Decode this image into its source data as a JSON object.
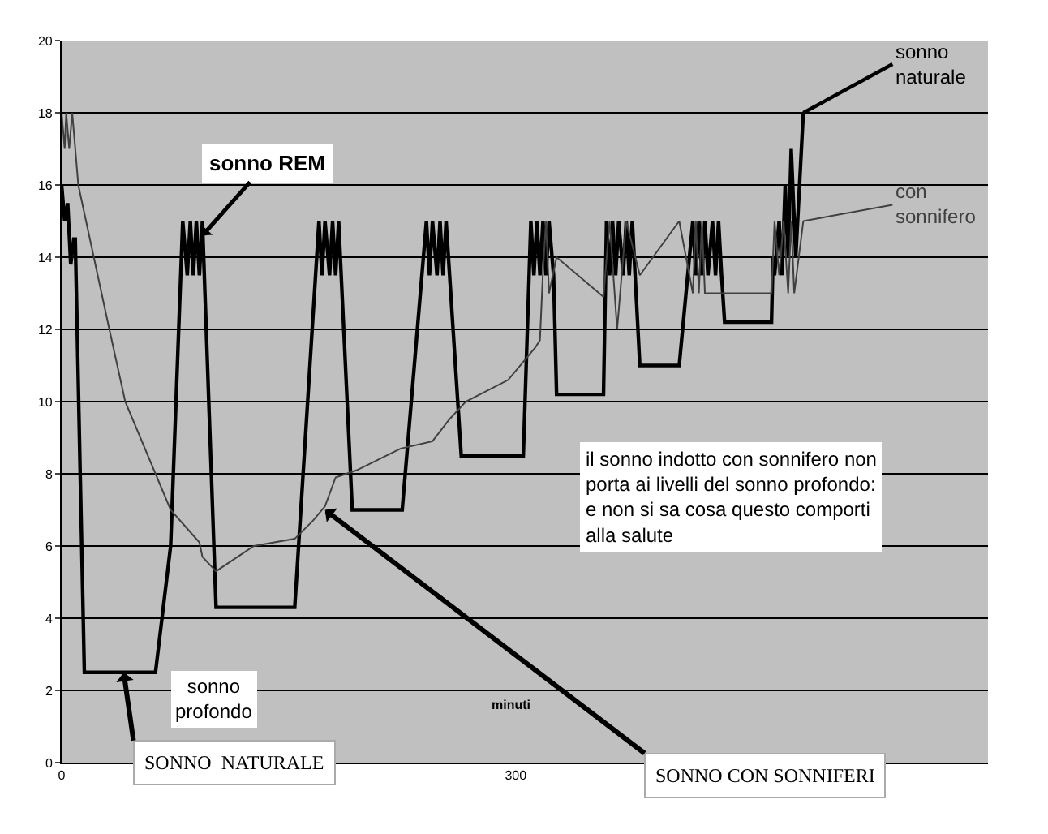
{
  "chart_data": {
    "type": "line",
    "xlabel": "minuti",
    "xlim": [
      0,
      612
    ],
    "xticks": [
      0,
      300
    ],
    "ylim": [
      0,
      20
    ],
    "yticks": [
      0,
      2,
      4,
      6,
      8,
      10,
      12,
      14,
      16,
      18,
      20
    ],
    "grid": "y",
    "marker": "none",
    "line_style": "solid",
    "series": [
      {
        "name": "sonno naturale",
        "color": "#000000",
        "x": [
          0,
          2,
          4,
          6,
          8,
          9,
          15,
          62,
          72,
          80,
          83,
          85,
          87,
          89,
          91,
          93,
          102,
          154,
          170,
          172,
          174,
          177,
          179,
          181,
          183,
          192,
          225,
          241,
          243,
          245,
          248,
          250,
          252,
          254,
          264,
          305,
          310,
          312,
          314,
          316,
          318,
          320,
          322,
          325,
          327,
          358,
          360,
          362,
          364,
          366,
          368,
          371,
          373,
          375,
          377,
          382,
          408,
          417,
          419,
          421,
          423,
          425,
          427,
          430,
          432,
          434,
          436,
          438,
          469,
          470,
          471,
          474,
          476,
          478,
          480,
          482,
          485,
          490
        ],
        "values": [
          16,
          15,
          15.5,
          13.8,
          14.5,
          14.5,
          2.5,
          2.5,
          6,
          15,
          13.5,
          15,
          13.5,
          15,
          13.5,
          15,
          4.3,
          4.3,
          15,
          13.5,
          15,
          13.5,
          15,
          13.5,
          15,
          7,
          7,
          15,
          13.5,
          15,
          13.5,
          15,
          13.5,
          15,
          8.5,
          8.5,
          15,
          13.5,
          15,
          13.5,
          15,
          13.5,
          15,
          13.5,
          10.2,
          10.2,
          15,
          13.5,
          15,
          13.5,
          15,
          13.5,
          15,
          13.5,
          15,
          11,
          11,
          15,
          13.5,
          15,
          13.5,
          15,
          13.5,
          15,
          13.5,
          15,
          13.5,
          12.2,
          12.2,
          14,
          13.5,
          15,
          13.5,
          16,
          14,
          17,
          14,
          18
        ]
      },
      {
        "name": "con sonnifero",
        "color": "#404040",
        "x": [
          0,
          2,
          3,
          5,
          7,
          11,
          31,
          42,
          72,
          91,
          93,
          102,
          127,
          154,
          166,
          174,
          181,
          195,
          224,
          245,
          256,
          267,
          295,
          313,
          316,
          318,
          320,
          322,
          327,
          358,
          362,
          367,
          373,
          382,
          408,
          417,
          419,
          421,
          423,
          425,
          431,
          469,
          471,
          474,
          477,
          480,
          482,
          484,
          490
        ],
        "values": [
          18,
          17,
          18,
          17,
          18,
          16,
          12.1,
          10,
          7,
          6.1,
          5.7,
          5.3,
          6,
          6.2,
          6.7,
          7.1,
          7.9,
          8.1,
          8.7,
          8.9,
          9.5,
          10,
          10.6,
          11.5,
          11.7,
          13.6,
          15,
          13,
          14,
          12.9,
          15,
          12,
          15,
          13.5,
          15,
          13,
          15,
          13,
          15,
          13,
          13,
          13,
          15,
          13.5,
          15,
          13,
          15,
          13,
          15
        ]
      }
    ],
    "annotations": [
      {
        "text": "sonno REM",
        "x": 93,
        "y": 14.6
      },
      "sonno profondo",
      {
        "text": "SONNO  NATURALE",
        "x": 41,
        "y": 2.5
      },
      {
        "text": "SONNO CON SONNIFERI",
        "x": 174,
        "y": 7
      },
      "il sonno indotto con sonnifero non porta ai livelli del sonno profondo: e non si sa cosa questo comporti alla salute"
    ]
  }
}
